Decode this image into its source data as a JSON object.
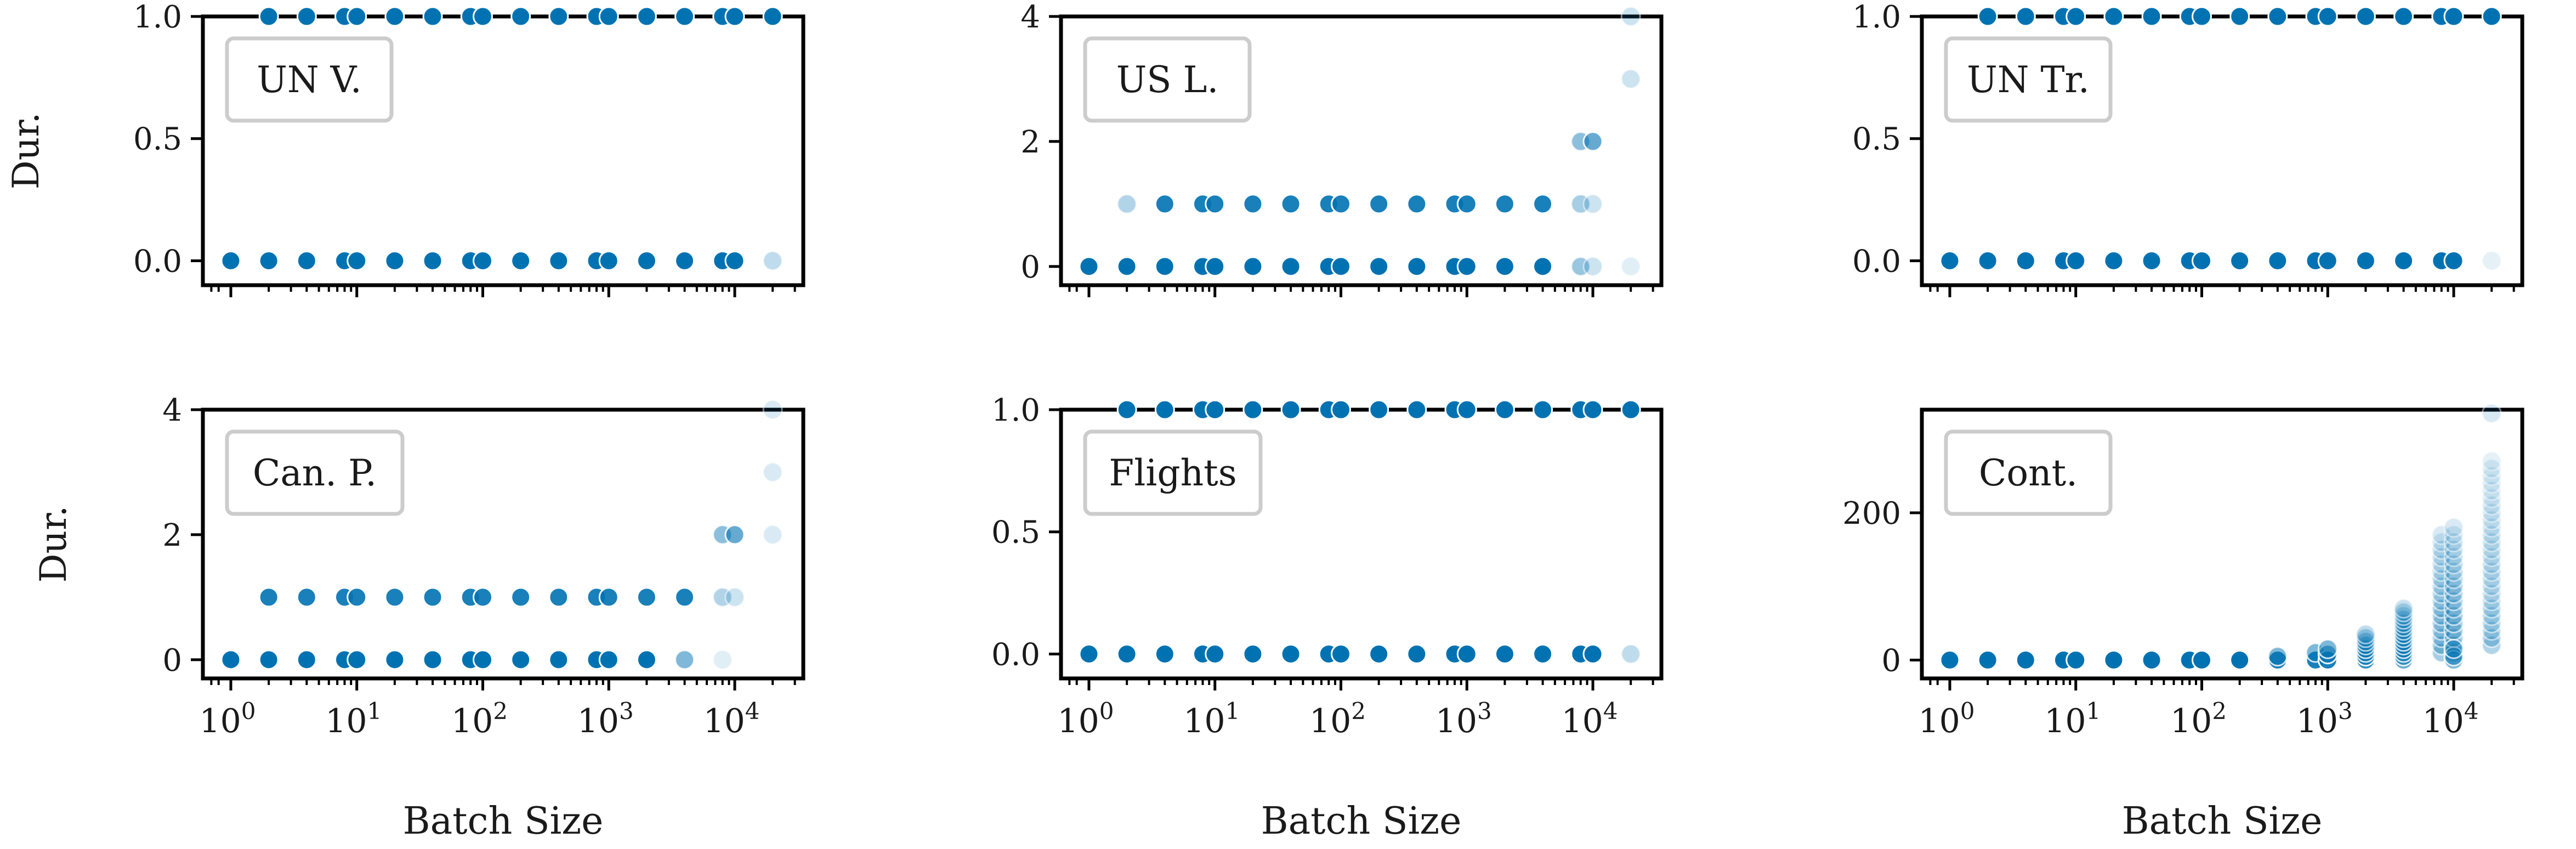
{
  "figure": {
    "xlabel": "Batch Size",
    "ylabel": "Dur.",
    "point_color": "#0072b2",
    "legend_border_color": "#cccccc"
  },
  "chart_data": [
    {
      "type": "scatter",
      "title": "UN V.",
      "xscale": "log",
      "xlim": [
        0.6,
        35000
      ],
      "ylim": [
        -0.1,
        1.0
      ],
      "yticks": [
        0.0,
        0.5,
        1.0
      ],
      "ytick_labels": [
        "0.0",
        "0.5",
        "1.0"
      ],
      "xticks": [
        1,
        10,
        100,
        1000,
        10000
      ],
      "xtick_labels": [
        "10^0",
        "10^1",
        "10^2",
        "10^3",
        "10^4"
      ],
      "show_ylabel": true,
      "show_xlabel": false,
      "x": [
        1,
        2,
        4,
        8,
        10,
        20,
        40,
        80,
        100,
        200,
        400,
        800,
        1000,
        2000,
        4000,
        8000,
        10000,
        20000,
        2,
        4,
        8,
        10,
        20,
        40,
        80,
        100,
        200,
        400,
        800,
        1000,
        2000,
        4000,
        8000,
        10000,
        20000
      ],
      "y": [
        0,
        0,
        0,
        0,
        0,
        0,
        0,
        0,
        0,
        0,
        0,
        0,
        0,
        0,
        0,
        0,
        0,
        0,
        1,
        1,
        1,
        1,
        1,
        1,
        1,
        1,
        1,
        1,
        1,
        1,
        1,
        1,
        1,
        1,
        1
      ],
      "alpha": [
        1,
        1,
        1,
        1,
        1,
        1,
        1,
        1,
        1,
        1,
        1,
        1,
        1,
        1,
        1,
        1,
        1,
        0.25,
        1,
        1,
        1,
        1,
        1,
        1,
        1,
        1,
        1,
        1,
        1,
        1,
        1,
        1,
        1,
        1,
        1
      ]
    },
    {
      "type": "scatter",
      "title": "US L.",
      "xscale": "log",
      "xlim": [
        0.6,
        35000
      ],
      "ylim": [
        -0.3,
        4.0
      ],
      "yticks": [
        0,
        2,
        4
      ],
      "ytick_labels": [
        "0",
        "2",
        "4"
      ],
      "xticks": [
        1,
        10,
        100,
        1000,
        10000
      ],
      "xtick_labels": [
        "10^0",
        "10^1",
        "10^2",
        "10^3",
        "10^4"
      ],
      "show_ylabel": false,
      "show_xlabel": false,
      "x": [
        1,
        2,
        4,
        8,
        10,
        20,
        40,
        80,
        100,
        200,
        400,
        800,
        1000,
        2000,
        4000,
        8000,
        10000,
        20000,
        2,
        4,
        8,
        10,
        20,
        40,
        80,
        100,
        200,
        400,
        800,
        1000,
        2000,
        4000,
        8000,
        10000,
        8000,
        10000,
        20000,
        20000
      ],
      "y": [
        0,
        0,
        0,
        0,
        0,
        0,
        0,
        0,
        0,
        0,
        0,
        0,
        0,
        0,
        0,
        0,
        0,
        0,
        1,
        1,
        1,
        1,
        1,
        1,
        1,
        1,
        1,
        1,
        1,
        1,
        1,
        1,
        1,
        1,
        2,
        2,
        3,
        4
      ],
      "alpha": [
        1,
        1,
        1,
        1,
        1,
        1,
        1,
        1,
        1,
        1,
        1,
        1,
        1,
        1,
        1,
        0.4,
        0.2,
        0.12,
        0.3,
        0.9,
        0.9,
        0.9,
        0.9,
        0.9,
        0.9,
        0.9,
        0.9,
        0.9,
        0.9,
        0.9,
        0.9,
        0.9,
        0.35,
        0.2,
        0.45,
        0.6,
        0.2,
        0.2
      ]
    },
    {
      "type": "scatter",
      "title": "UN Tr.",
      "xscale": "log",
      "xlim": [
        0.6,
        35000
      ],
      "ylim": [
        -0.1,
        1.0
      ],
      "yticks": [
        0.0,
        0.5,
        1.0
      ],
      "ytick_labels": [
        "0.0",
        "0.5",
        "1.0"
      ],
      "xticks": [
        1,
        10,
        100,
        1000,
        10000
      ],
      "xtick_labels": [
        "10^0",
        "10^1",
        "10^2",
        "10^3",
        "10^4"
      ],
      "show_ylabel": false,
      "show_xlabel": false,
      "x": [
        1,
        2,
        4,
        8,
        10,
        20,
        40,
        80,
        100,
        200,
        400,
        800,
        1000,
        2000,
        4000,
        8000,
        10000,
        20000,
        2,
        4,
        8,
        10,
        20,
        40,
        80,
        100,
        200,
        400,
        800,
        1000,
        2000,
        4000,
        8000,
        10000,
        20000
      ],
      "y": [
        0,
        0,
        0,
        0,
        0,
        0,
        0,
        0,
        0,
        0,
        0,
        0,
        0,
        0,
        0,
        0,
        0,
        0,
        1,
        1,
        1,
        1,
        1,
        1,
        1,
        1,
        1,
        1,
        1,
        1,
        1,
        1,
        1,
        1,
        1
      ],
      "alpha": [
        1,
        1,
        1,
        1,
        1,
        1,
        1,
        1,
        1,
        1,
        1,
        1,
        1,
        1,
        1,
        1,
        1,
        0.1,
        1,
        1,
        1,
        1,
        1,
        1,
        1,
        1,
        1,
        1,
        1,
        1,
        1,
        1,
        1,
        1,
        1
      ]
    },
    {
      "type": "scatter",
      "title": "Can. P.",
      "xscale": "log",
      "xlim": [
        0.6,
        35000
      ],
      "ylim": [
        -0.3,
        4.0
      ],
      "yticks": [
        0,
        2,
        4
      ],
      "ytick_labels": [
        "0",
        "2",
        "4"
      ],
      "xticks": [
        1,
        10,
        100,
        1000,
        10000
      ],
      "xtick_labels": [
        "10^0",
        "10^1",
        "10^2",
        "10^3",
        "10^4"
      ],
      "show_ylabel": true,
      "show_xlabel": true,
      "x": [
        1,
        2,
        4,
        8,
        10,
        20,
        40,
        80,
        100,
        200,
        400,
        800,
        1000,
        2000,
        4000,
        8000,
        2,
        4,
        8,
        10,
        20,
        40,
        80,
        100,
        200,
        400,
        800,
        1000,
        2000,
        4000,
        8000,
        10000,
        8000,
        10000,
        20000,
        20000,
        20000
      ],
      "y": [
        0,
        0,
        0,
        0,
        0,
        0,
        0,
        0,
        0,
        0,
        0,
        0,
        0,
        0,
        0,
        0,
        1,
        1,
        1,
        1,
        1,
        1,
        1,
        1,
        1,
        1,
        1,
        1,
        1,
        1,
        1,
        1,
        2,
        2,
        2,
        3,
        4
      ],
      "alpha": [
        1,
        1,
        1,
        1,
        1,
        1,
        1,
        1,
        1,
        1,
        1,
        1,
        1,
        1,
        0.5,
        0.12,
        0.9,
        0.9,
        0.9,
        0.9,
        0.9,
        0.9,
        0.9,
        0.9,
        0.9,
        0.9,
        0.9,
        0.9,
        0.9,
        0.9,
        0.3,
        0.2,
        0.45,
        0.6,
        0.15,
        0.15,
        0.15
      ]
    },
    {
      "type": "scatter",
      "title": "Flights",
      "xscale": "log",
      "xlim": [
        0.6,
        35000
      ],
      "ylim": [
        -0.1,
        1.0
      ],
      "yticks": [
        0.0,
        0.5,
        1.0
      ],
      "ytick_labels": [
        "0.0",
        "0.5",
        "1.0"
      ],
      "xticks": [
        1,
        10,
        100,
        1000,
        10000
      ],
      "xtick_labels": [
        "10^0",
        "10^1",
        "10^2",
        "10^3",
        "10^4"
      ],
      "show_ylabel": false,
      "show_xlabel": true,
      "x": [
        1,
        2,
        4,
        8,
        10,
        20,
        40,
        80,
        100,
        200,
        400,
        800,
        1000,
        2000,
        4000,
        8000,
        10000,
        20000,
        2,
        4,
        8,
        10,
        20,
        40,
        80,
        100,
        200,
        400,
        800,
        1000,
        2000,
        4000,
        8000,
        10000,
        20000
      ],
      "y": [
        0,
        0,
        0,
        0,
        0,
        0,
        0,
        0,
        0,
        0,
        0,
        0,
        0,
        0,
        0,
        0,
        0,
        0,
        1,
        1,
        1,
        1,
        1,
        1,
        1,
        1,
        1,
        1,
        1,
        1,
        1,
        1,
        1,
        1,
        1
      ],
      "alpha": [
        1,
        1,
        1,
        1,
        1,
        1,
        1,
        1,
        1,
        1,
        1,
        1,
        1,
        1,
        1,
        1,
        1,
        0.25,
        1,
        1,
        1,
        1,
        1,
        1,
        1,
        1,
        1,
        1,
        1,
        1,
        1,
        1,
        1,
        1,
        1
      ]
    },
    {
      "type": "scatter",
      "title": "Cont.",
      "xscale": "log",
      "xlim": [
        0.6,
        35000
      ],
      "ylim": [
        -25,
        340
      ],
      "yticks": [
        0,
        200
      ],
      "ytick_labels": [
        "0",
        "200"
      ],
      "xticks": [
        1,
        10,
        100,
        1000,
        10000
      ],
      "xtick_labels": [
        "10^0",
        "10^1",
        "10^2",
        "10^3",
        "10^4"
      ],
      "show_ylabel": false,
      "show_xlabel": true,
      "x": [
        1,
        2,
        4,
        8,
        10,
        20,
        40,
        80,
        100,
        200,
        400,
        400,
        800,
        800,
        1000,
        1000,
        1000,
        2000,
        2000,
        2000,
        2000,
        2000,
        2000,
        2000,
        2000,
        4000,
        4000,
        4000,
        4000,
        4000,
        4000,
        4000,
        4000,
        4000,
        4000,
        4000,
        4000,
        4000,
        4000,
        4000,
        8000,
        8000,
        8000,
        8000,
        8000,
        8000,
        8000,
        8000,
        8000,
        8000,
        8000,
        8000,
        8000,
        8000,
        8000,
        8000,
        8000,
        10000,
        10000,
        10000,
        10000,
        10000,
        10000,
        10000,
        10000,
        10000,
        10000,
        10000,
        10000,
        10000,
        10000,
        10000,
        10000,
        10000,
        10000,
        10000,
        10000,
        10000,
        20000,
        20000,
        20000,
        20000,
        20000,
        20000,
        20000,
        20000,
        20000,
        20000,
        20000,
        20000,
        20000,
        20000,
        20000,
        20000,
        20000,
        20000,
        20000,
        20000,
        20000,
        20000,
        20000,
        20000,
        20000,
        20000,
        20000
      ],
      "y": [
        0,
        0,
        0,
        0,
        0,
        0,
        0,
        0,
        0,
        0,
        0,
        5,
        0,
        10,
        0,
        8,
        15,
        0,
        5,
        10,
        15,
        20,
        25,
        30,
        35,
        0,
        5,
        10,
        15,
        20,
        25,
        30,
        35,
        40,
        45,
        50,
        55,
        60,
        65,
        70,
        10,
        20,
        30,
        40,
        50,
        60,
        70,
        80,
        90,
        100,
        110,
        120,
        130,
        140,
        150,
        160,
        170,
        10,
        20,
        30,
        40,
        50,
        60,
        70,
        80,
        90,
        100,
        110,
        120,
        130,
        140,
        150,
        160,
        170,
        180,
        0,
        5,
        15,
        20,
        30,
        40,
        50,
        60,
        70,
        80,
        90,
        100,
        110,
        120,
        130,
        140,
        150,
        160,
        170,
        180,
        190,
        200,
        210,
        220,
        230,
        240,
        250,
        260,
        270,
        335
      ],
      "alpha": [
        1,
        1,
        1,
        1,
        1,
        1,
        1,
        1,
        1,
        1,
        0.9,
        0.5,
        0.9,
        0.5,
        0.9,
        0.6,
        0.5,
        0.8,
        0.6,
        0.5,
        0.5,
        0.4,
        0.35,
        0.3,
        0.25,
        0.6,
        0.55,
        0.5,
        0.5,
        0.45,
        0.45,
        0.4,
        0.4,
        0.35,
        0.35,
        0.3,
        0.3,
        0.25,
        0.25,
        0.2,
        0.35,
        0.35,
        0.3,
        0.3,
        0.3,
        0.3,
        0.3,
        0.25,
        0.25,
        0.25,
        0.25,
        0.2,
        0.2,
        0.2,
        0.2,
        0.15,
        0.15,
        0.4,
        0.4,
        0.35,
        0.35,
        0.35,
        0.35,
        0.3,
        0.3,
        0.3,
        0.3,
        0.25,
        0.25,
        0.25,
        0.2,
        0.2,
        0.2,
        0.15,
        0.15,
        0.5,
        0.5,
        0.45,
        0.3,
        0.3,
        0.25,
        0.25,
        0.25,
        0.25,
        0.2,
        0.2,
        0.2,
        0.2,
        0.2,
        0.2,
        0.18,
        0.18,
        0.18,
        0.18,
        0.15,
        0.15,
        0.15,
        0.15,
        0.12,
        0.12,
        0.12,
        0.12,
        0.12,
        0.1,
        0.15
      ]
    }
  ]
}
